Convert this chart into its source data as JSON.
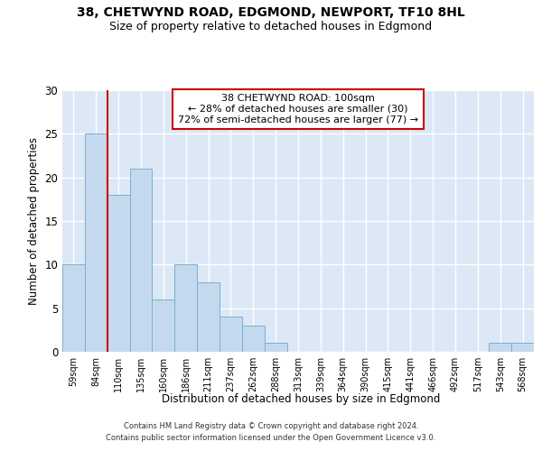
{
  "title1": "38, CHETWYND ROAD, EDGMOND, NEWPORT, TF10 8HL",
  "title2": "Size of property relative to detached houses in Edgmond",
  "xlabel": "Distribution of detached houses by size in Edgmond",
  "ylabel": "Number of detached properties",
  "categories": [
    "59sqm",
    "84sqm",
    "110sqm",
    "135sqm",
    "160sqm",
    "186sqm",
    "211sqm",
    "237sqm",
    "262sqm",
    "288sqm",
    "313sqm",
    "339sqm",
    "364sqm",
    "390sqm",
    "415sqm",
    "441sqm",
    "466sqm",
    "492sqm",
    "517sqm",
    "543sqm",
    "568sqm"
  ],
  "values": [
    10,
    25,
    18,
    21,
    6,
    10,
    8,
    4,
    3,
    1,
    0,
    0,
    0,
    0,
    0,
    0,
    0,
    0,
    0,
    1,
    1
  ],
  "bar_color": "#c5d9ee",
  "bar_edge_color": "#7aafd4",
  "vline_color": "#cc0000",
  "vline_x": 1.5,
  "annotation_lines": [
    "38 CHETWYND ROAD: 100sqm",
    "← 28% of detached houses are smaller (30)",
    "72% of semi-detached houses are larger (77) →"
  ],
  "annotation_box_edgecolor": "#cc0000",
  "ylim": [
    0,
    30
  ],
  "yticks": [
    0,
    5,
    10,
    15,
    20,
    25,
    30
  ],
  "background_color": "#dce8f5",
  "grid_color": "#ffffff",
  "footnote1": "Contains HM Land Registry data © Crown copyright and database right 2024.",
  "footnote2": "Contains public sector information licensed under the Open Government Licence v3.0."
}
